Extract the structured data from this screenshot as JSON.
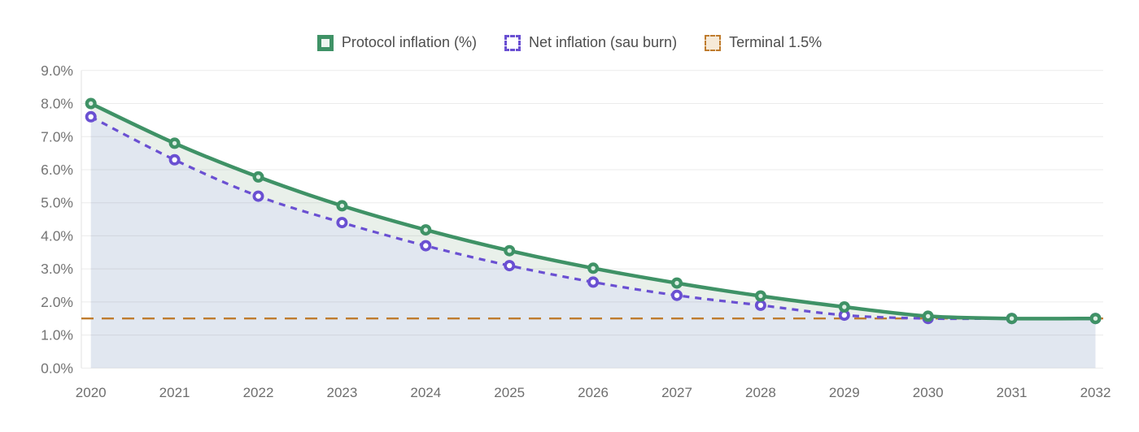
{
  "legend": {
    "items": [
      {
        "label": "Protocol inflation (%)",
        "swatch": "green-solid-square",
        "color": "#3f9266"
      },
      {
        "label": "Net inflation (sau burn)",
        "swatch": "purple-dashed-square",
        "color": "#6a50d2"
      },
      {
        "label": "Terminal 1.5%",
        "swatch": "orange-dashed-square",
        "color": "#bf7c2e"
      }
    ]
  },
  "chart_data": {
    "type": "line",
    "title": "",
    "xlabel": "",
    "ylabel": "",
    "x": [
      2020,
      2021,
      2022,
      2023,
      2024,
      2025,
      2026,
      2027,
      2028,
      2029,
      2030,
      2031,
      2032
    ],
    "series": [
      {
        "name": "Protocol inflation (%)",
        "style": "solid",
        "color": "#3f9266",
        "marker": "circle",
        "values": [
          8.0,
          6.8,
          5.78,
          4.91,
          4.18,
          3.55,
          3.02,
          2.57,
          2.18,
          1.85,
          1.57,
          1.5,
          1.5
        ]
      },
      {
        "name": "Net inflation (sau burn)",
        "style": "dashed",
        "color": "#6a50d2",
        "marker": "circle",
        "values": [
          7.6,
          6.3,
          5.2,
          4.4,
          3.7,
          3.1,
          2.6,
          2.2,
          1.9,
          1.6,
          1.5,
          1.5,
          1.5
        ]
      },
      {
        "name": "Terminal 1.5%",
        "style": "dashed-horizontal",
        "color": "#bf7c2e",
        "value": 1.5
      }
    ],
    "ylim": [
      0,
      9
    ],
    "yticks": [
      "0.0%",
      "1.0%",
      "2.0%",
      "3.0%",
      "4.0%",
      "5.0%",
      "6.0%",
      "7.0%",
      "8.0%",
      "9.0%"
    ],
    "grid": true,
    "legend_position": "top",
    "fills": {
      "between_protocol_and_net": "#e9f0ea",
      "under_net": "#e1e7f0"
    },
    "grid_color": "#ececec",
    "axis_line_color": "#e2e2e2",
    "tick_color": "#757575"
  }
}
